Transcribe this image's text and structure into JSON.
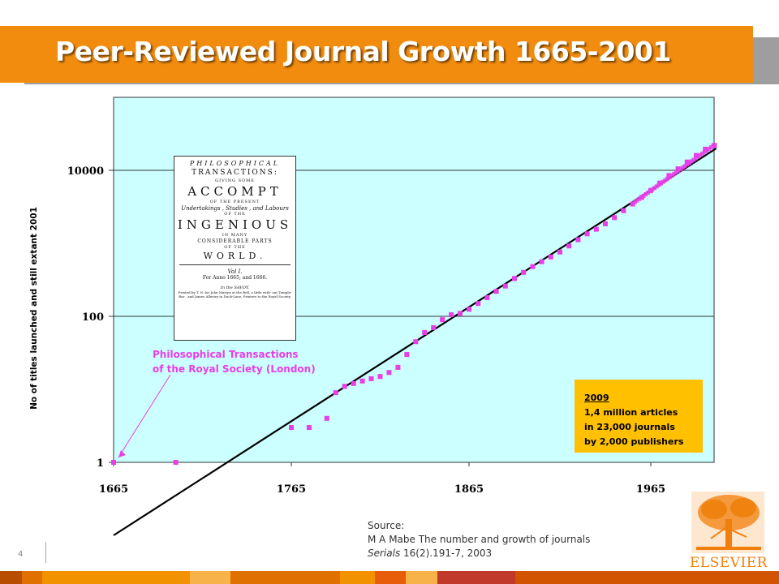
{
  "title": "Peer-Reviewed Journal Growth 1665-2001",
  "colors": {
    "title_bar": "#f28c0f",
    "plot_background": "#ccffff",
    "marker": "#e83ee8",
    "trend_line": "#000000",
    "info_box": "#ffc000",
    "logo": "#f07f0b"
  },
  "chart_data": {
    "type": "scatter",
    "title": "Peer-Reviewed Journal Growth 1665-2001",
    "xlabel": "",
    "ylabel": "No of titles launched and still extant 2001",
    "y_scale": "log",
    "xlim": [
      1665,
      2001
    ],
    "ylim": [
      1,
      100000
    ],
    "x_ticks": [
      "1665",
      "1765",
      "1865",
      "1965"
    ],
    "y_ticks": [
      "1",
      "100",
      "10000"
    ],
    "grid": "horizontal",
    "series": [
      {
        "kind": "markers",
        "x": [
          1665,
          1700,
          1765,
          1775,
          1785,
          1790,
          1795,
          1800,
          1805,
          1810,
          1815,
          1820,
          1825,
          1830,
          1835,
          1840,
          1845,
          1850,
          1855,
          1860,
          1865,
          1870,
          1875,
          1880,
          1885,
          1890,
          1895,
          1900,
          1905,
          1910,
          1915,
          1920,
          1925,
          1930,
          1935,
          1940,
          1945,
          1950,
          1955,
          1960,
          1965,
          1970,
          1975,
          1980,
          1985,
          1990,
          1995,
          2000
        ],
        "y": [
          1,
          1,
          3,
          3,
          4,
          9,
          11,
          12,
          13,
          14,
          15,
          17,
          20,
          30,
          45,
          60,
          70,
          90,
          105,
          110,
          125,
          150,
          180,
          220,
          260,
          330,
          400,
          480,
          560,
          650,
          760,
          920,
          1120,
          1350,
          1560,
          1850,
          2250,
          2800,
          3450,
          4250,
          5300,
          6700,
          8500,
          10500,
          13000,
          16000,
          19500,
          22000
        ]
      },
      {
        "kind": "trend-line",
        "x": [
          1665,
          2001
        ],
        "y": [
          0.1,
          20000
        ]
      }
    ],
    "annotations": [
      "Philosophical Transactions",
      "of the Royal Society (London)"
    ],
    "info_box": [
      "2009",
      "1,4 million articles",
      "in 23,000 journals",
      "by 2,000 publishers"
    ]
  },
  "scan": {
    "lines": [
      "PHILOSOPHICAL",
      "TRANSACTIONS:",
      "GIVING SOME",
      "ACCOMPT",
      "OF THE PRESENT",
      "Undertakings , Studies , and Labours",
      "OF THE",
      "INGENIOUS",
      "IN MANY",
      "CONSIDERABLE PARTS",
      "OF THE",
      "WORLD.",
      "Vol I.",
      "For Anno 1665, and 1666.",
      "In the SAVOY,",
      "Printed by T. N. for John Martyn at the Bell, a little with- out Temple-Bar , and James Allestry in Duck-Lane, Printers to the Royal Society."
    ]
  },
  "source": {
    "heading": "Source:",
    "line1": "M A Mabe The number and growth of journals",
    "line2_italic": "Serials",
    "line2_rest": " 16(2).191-7, 2003"
  },
  "page_number": "4",
  "logo_text": "ELSEVIER",
  "footer_colors": [
    "#b84d00",
    "#e07000",
    "#f39200",
    "#f7b24a",
    "#e07000",
    "#f39200",
    "#e85d0a",
    "#f7b24a",
    "#c0392b",
    "#d35400"
  ]
}
